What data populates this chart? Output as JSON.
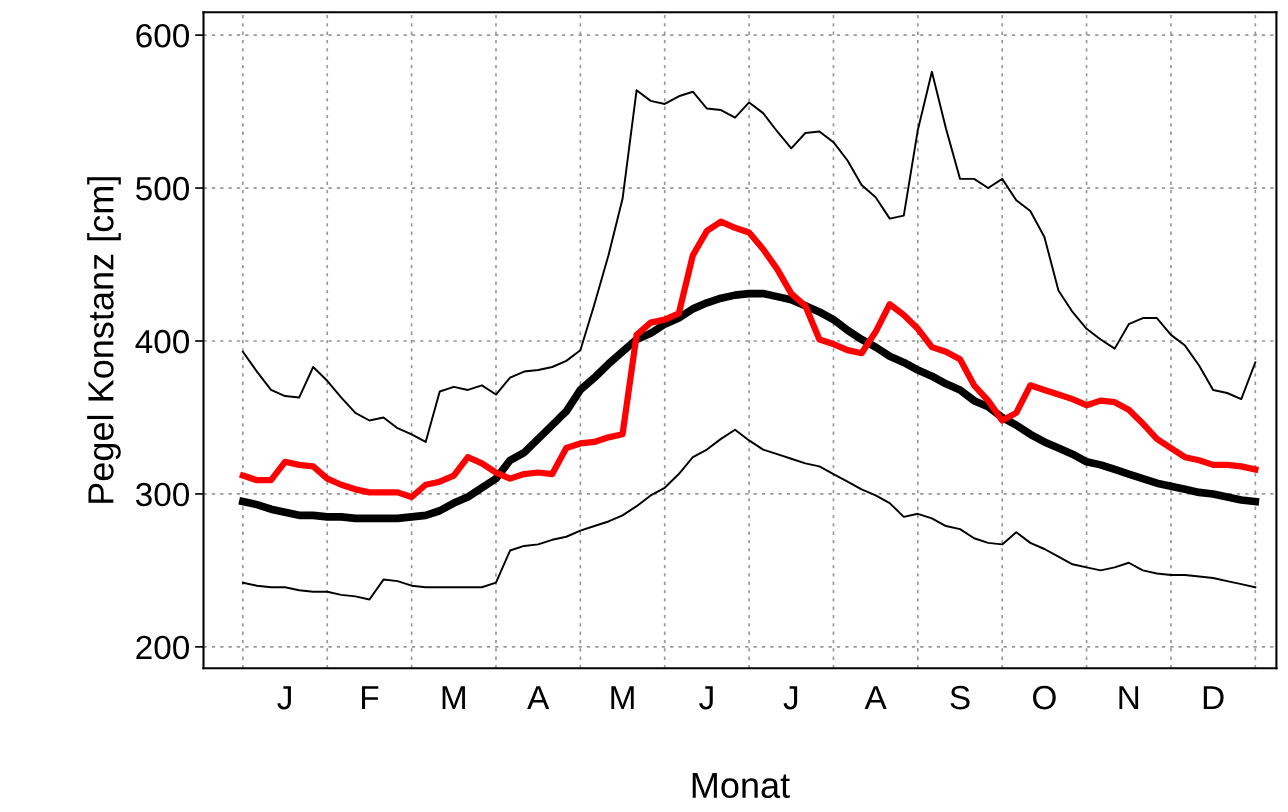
{
  "chart_data": {
    "type": "line",
    "xlabel": "Monat",
    "ylabel": "Pegel Konstanz [cm]",
    "categories": [
      null,
      null,
      null,
      "J",
      null,
      null,
      null,
      null,
      null,
      "F",
      null,
      null,
      null,
      null,
      null,
      "M",
      null,
      null,
      null,
      null,
      null,
      "A",
      null,
      null,
      null,
      null,
      null,
      "M",
      null,
      null,
      null,
      null,
      null,
      "J",
      null,
      null,
      null,
      null,
      null,
      "J",
      null,
      null,
      null,
      null,
      null,
      "A",
      null,
      null,
      null,
      null,
      null,
      "S",
      null,
      null,
      null,
      null,
      null,
      "O",
      null,
      null,
      null,
      null,
      null,
      "N",
      null,
      null,
      null,
      null,
      null,
      "D",
      null,
      null,
      null
    ],
    "ylim": [
      186,
      615
    ],
    "yticks": [
      200,
      300,
      400,
      500,
      600
    ],
    "grid": true,
    "legend": false,
    "marker": "none",
    "line_style": "solid",
    "series": [
      {
        "color": "#000000",
        "values": [
          393,
          380,
          368,
          364,
          363,
          383,
          374,
          363,
          353,
          348,
          350,
          343,
          339,
          334,
          367,
          370,
          368,
          371,
          365,
          376,
          380,
          381,
          383,
          387,
          394,
          424,
          456,
          493,
          564,
          557,
          555,
          560,
          563,
          552,
          551,
          546,
          556,
          549,
          537,
          526,
          536,
          537,
          530,
          518,
          502,
          494,
          480,
          482,
          538,
          576,
          539,
          506,
          506,
          500,
          506,
          492,
          485,
          468,
          433,
          419,
          408,
          401,
          395,
          411,
          415,
          415,
          404,
          397,
          384,
          368,
          366,
          362,
          386
        ]
      },
      {
        "color": "#000000",
        "values": [
          242,
          240,
          239,
          239,
          237,
          236,
          236,
          234,
          233,
          231,
          244,
          243,
          240,
          239,
          239,
          239,
          239,
          239,
          242,
          263,
          266,
          267,
          270,
          272,
          276,
          279,
          282,
          286,
          292,
          299,
          304,
          313,
          324,
          329,
          336,
          342,
          335,
          329,
          326,
          323,
          320,
          318,
          313,
          308,
          303,
          299,
          294,
          285,
          287,
          284,
          279,
          277,
          271,
          268,
          267,
          275,
          268,
          264,
          259,
          254,
          252,
          250,
          252,
          255,
          250,
          248,
          247,
          247,
          246,
          245,
          243,
          241,
          239
        ]
      },
      {
        "color": "#000000",
        "values": [
          295,
          293,
          290,
          288,
          286,
          286,
          285,
          285,
          284,
          284,
          284,
          284,
          285,
          286,
          289,
          294,
          298,
          304,
          310,
          322,
          327,
          336,
          345,
          354,
          368,
          376,
          385,
          393,
          401,
          405,
          411,
          415,
          421,
          425,
          428,
          430,
          431,
          431,
          429,
          427,
          423,
          419,
          414,
          407,
          401,
          396,
          390,
          386,
          381,
          377,
          372,
          368,
          361,
          357,
          350,
          345,
          339,
          334,
          330,
          326,
          321,
          319,
          316,
          313,
          310,
          307,
          305,
          303,
          301,
          300,
          298,
          296,
          295
        ]
      },
      {
        "color": "#ff0000",
        "values": [
          312,
          309,
          309,
          321,
          319,
          318,
          310,
          306,
          303,
          301,
          301,
          301,
          298,
          306,
          308,
          312,
          324,
          320,
          314,
          310,
          313,
          314,
          313,
          330,
          333,
          334,
          337,
          339,
          404,
          412,
          414,
          418,
          456,
          472,
          478,
          474,
          471,
          460,
          447,
          431,
          423,
          401,
          398,
          394,
          392,
          406,
          424,
          417,
          408,
          396,
          393,
          388,
          371,
          361,
          348,
          353,
          371,
          368,
          365,
          362,
          358,
          361,
          360,
          355,
          346,
          336,
          330,
          324,
          322,
          319,
          319,
          318,
          316
        ]
      }
    ]
  }
}
